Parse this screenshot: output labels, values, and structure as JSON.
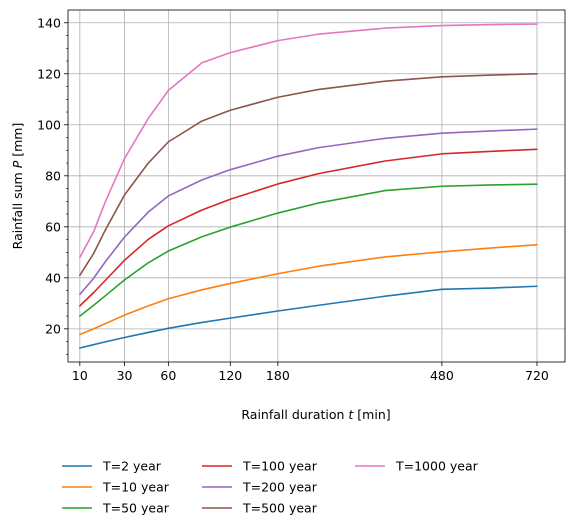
{
  "chart_data": {
    "type": "line",
    "xlabel": "Rainfall duration",
    "xlabel_var": "t",
    "xlabel_unit": "[min]",
    "ylabel": "Rainfall sum",
    "ylabel_var": "P",
    "ylabel_unit": "[mm]",
    "x_scale": "sqrt",
    "xlim": [
      6.5,
      800
    ],
    "ylim": [
      7,
      145
    ],
    "x_ticks": [
      10,
      30,
      60,
      120,
      180,
      480,
      720
    ],
    "y_ticks": [
      20,
      40,
      60,
      80,
      100,
      120,
      140
    ],
    "x_tick_labels": [
      "10",
      "30",
      "60",
      "120",
      "180",
      "480",
      "720"
    ],
    "y_tick_labels": [
      "20",
      "40",
      "60",
      "80",
      "100",
      "120",
      "140"
    ],
    "grid": true,
    "legend_position": "bottom",
    "x": [
      10,
      15,
      20,
      30,
      45,
      60,
      90,
      120,
      180,
      240,
      360,
      480,
      600,
      720
    ],
    "series": [
      {
        "name": "T=2 year",
        "color": "#1f77b4",
        "values": [
          12.5,
          13.8,
          14.9,
          16.6,
          18.6,
          20.2,
          22.5,
          24.2,
          27.0,
          29.2,
          32.8,
          35.5,
          36.0,
          36.7
        ]
      },
      {
        "name": "T=10 year",
        "color": "#ff7f0e",
        "values": [
          17.8,
          20.0,
          22.0,
          25.4,
          29.0,
          31.8,
          35.3,
          37.8,
          41.6,
          44.5,
          48.2,
          50.2,
          51.7,
          53.0
        ]
      },
      {
        "name": "T=50 year",
        "color": "#2ca02c",
        "values": [
          25.0,
          29.2,
          32.9,
          39.2,
          45.9,
          50.5,
          56.1,
          59.9,
          65.4,
          69.3,
          74.2,
          75.9,
          76.4,
          76.7
        ]
      },
      {
        "name": "T=100 year",
        "color": "#d62728",
        "values": [
          29.0,
          34.2,
          38.9,
          46.9,
          55.1,
          60.4,
          66.6,
          70.8,
          76.8,
          80.8,
          85.8,
          88.6,
          89.6,
          90.4
        ]
      },
      {
        "name": "T=200 year",
        "color": "#9467bd",
        "values": [
          33.5,
          39.8,
          46.2,
          56.0,
          65.8,
          72.1,
          78.4,
          82.4,
          87.7,
          91.0,
          94.7,
          96.7,
          97.6,
          98.3
        ]
      },
      {
        "name": "T=500 year",
        "color": "#8c564b",
        "values": [
          41.0,
          49.5,
          58.6,
          72.5,
          85.0,
          93.3,
          101.5,
          105.7,
          110.8,
          113.8,
          117.1,
          118.8,
          119.5,
          120.0
        ]
      },
      {
        "name": "T=1000 year",
        "color": "#e377c2",
        "values": [
          48.0,
          58.0,
          69.6,
          86.8,
          102.5,
          113.5,
          124.3,
          128.3,
          133.0,
          135.5,
          137.9,
          138.9,
          139.3,
          139.5
        ]
      }
    ]
  }
}
